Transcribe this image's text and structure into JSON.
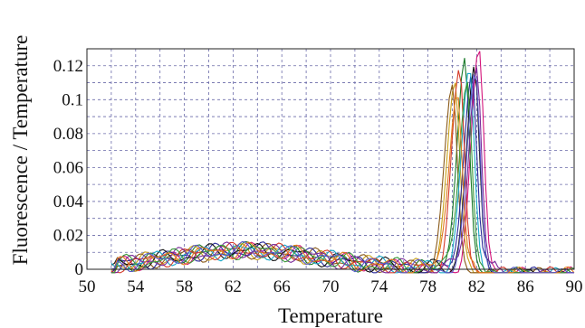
{
  "chart_data": {
    "type": "line",
    "title": "",
    "xlabel": "Temperature",
    "ylabel": "Fluorescence / Temperature",
    "xlim": [
      50,
      90
    ],
    "ylim": [
      0,
      0.13
    ],
    "x_ticks": [
      50,
      54,
      58,
      62,
      66,
      70,
      74,
      78,
      82,
      86,
      90
    ],
    "x_tick_labels": [
      "50",
      "54",
      "58",
      "62",
      "66",
      "70",
      "74",
      "78",
      "82",
      "86",
      "90"
    ],
    "y_ticks": [
      0,
      0.02,
      0.04,
      0.06,
      0.08,
      0.1,
      0.12
    ],
    "y_tick_labels": [
      "0",
      "0.02",
      "0.04",
      "0.06",
      "0.08",
      "0.1",
      "0.12"
    ],
    "grid": true,
    "grid_style": "dashed",
    "grid_color": "#6a6aa8",
    "x_minor_step": 2,
    "y_minor_step": 0.01,
    "legend": "none",
    "series": [
      {
        "color": "#d4147a",
        "peak_x": 82.2,
        "peak_y": 0.127
      },
      {
        "color": "#1a7a2a",
        "peak_x": 81.0,
        "peak_y": 0.121
      },
      {
        "color": "#c8a21a",
        "peak_x": 80.2,
        "peak_y": 0.11
      },
      {
        "color": "#8a5a1a",
        "peak_x": 80.0,
        "peak_y": 0.107
      },
      {
        "color": "#2a2a9a",
        "peak_x": 81.6,
        "peak_y": 0.119
      },
      {
        "color": "#111111",
        "peak_x": 81.8,
        "peak_y": 0.118
      },
      {
        "color": "#18a8c8",
        "peak_x": 81.4,
        "peak_y": 0.117
      },
      {
        "color": "#d43a2a",
        "peak_x": 80.6,
        "peak_y": 0.115
      },
      {
        "color": "#7a2a9a",
        "peak_x": 82.0,
        "peak_y": 0.12
      },
      {
        "color": "#3a9a3a",
        "peak_x": 81.2,
        "peak_y": 0.113
      },
      {
        "color": "#e07a1a",
        "peak_x": 80.4,
        "peak_y": 0.109
      },
      {
        "color": "#5a5aca",
        "peak_x": 81.9,
        "peak_y": 0.116
      }
    ]
  }
}
